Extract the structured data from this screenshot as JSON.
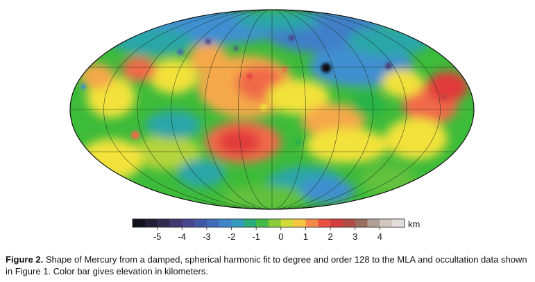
{
  "figure": {
    "map_title": "",
    "colorbar": {
      "unit": "km",
      "min": -6,
      "max": 5,
      "step": 0.5,
      "ticks": [
        "-5",
        "-4",
        "-3",
        "-2",
        "-1",
        "0",
        "1",
        "2",
        "3",
        "4"
      ],
      "tick_values": [
        -5,
        -4,
        -3,
        -2,
        -1,
        0,
        1,
        2,
        3,
        4
      ],
      "stops": [
        {
          "v": -6.0,
          "c": "#0a0a14"
        },
        {
          "v": -5.0,
          "c": "#2a2540"
        },
        {
          "v": -4.0,
          "c": "#4a3e80"
        },
        {
          "v": -3.0,
          "c": "#3f5fb0"
        },
        {
          "v": -2.0,
          "c": "#3f8fd0"
        },
        {
          "v": -1.5,
          "c": "#2aa6a8"
        },
        {
          "v": -1.0,
          "c": "#27b24a"
        },
        {
          "v": -0.5,
          "c": "#62c13e"
        },
        {
          "v": 0.0,
          "c": "#b4d43a"
        },
        {
          "v": 0.5,
          "c": "#f2e23a"
        },
        {
          "v": 1.0,
          "c": "#f5a84a"
        },
        {
          "v": 1.5,
          "c": "#f06a4a"
        },
        {
          "v": 2.0,
          "c": "#e23a3a"
        },
        {
          "v": 2.5,
          "c": "#c24040"
        },
        {
          "v": 3.0,
          "c": "#9a5a48"
        },
        {
          "v": 3.5,
          "c": "#9a8478"
        },
        {
          "v": 4.0,
          "c": "#c8bcb2"
        },
        {
          "v": 5.0,
          "c": "#ece8e6"
        }
      ]
    },
    "caption": {
      "label": "Figure 2.",
      "text": "Shape of Mercury from a damped, spherical harmonic fit to degree and order 128 to the MLA and occultation data shown in Figure 1. Color bar gives elevation in kilometers."
    }
  }
}
